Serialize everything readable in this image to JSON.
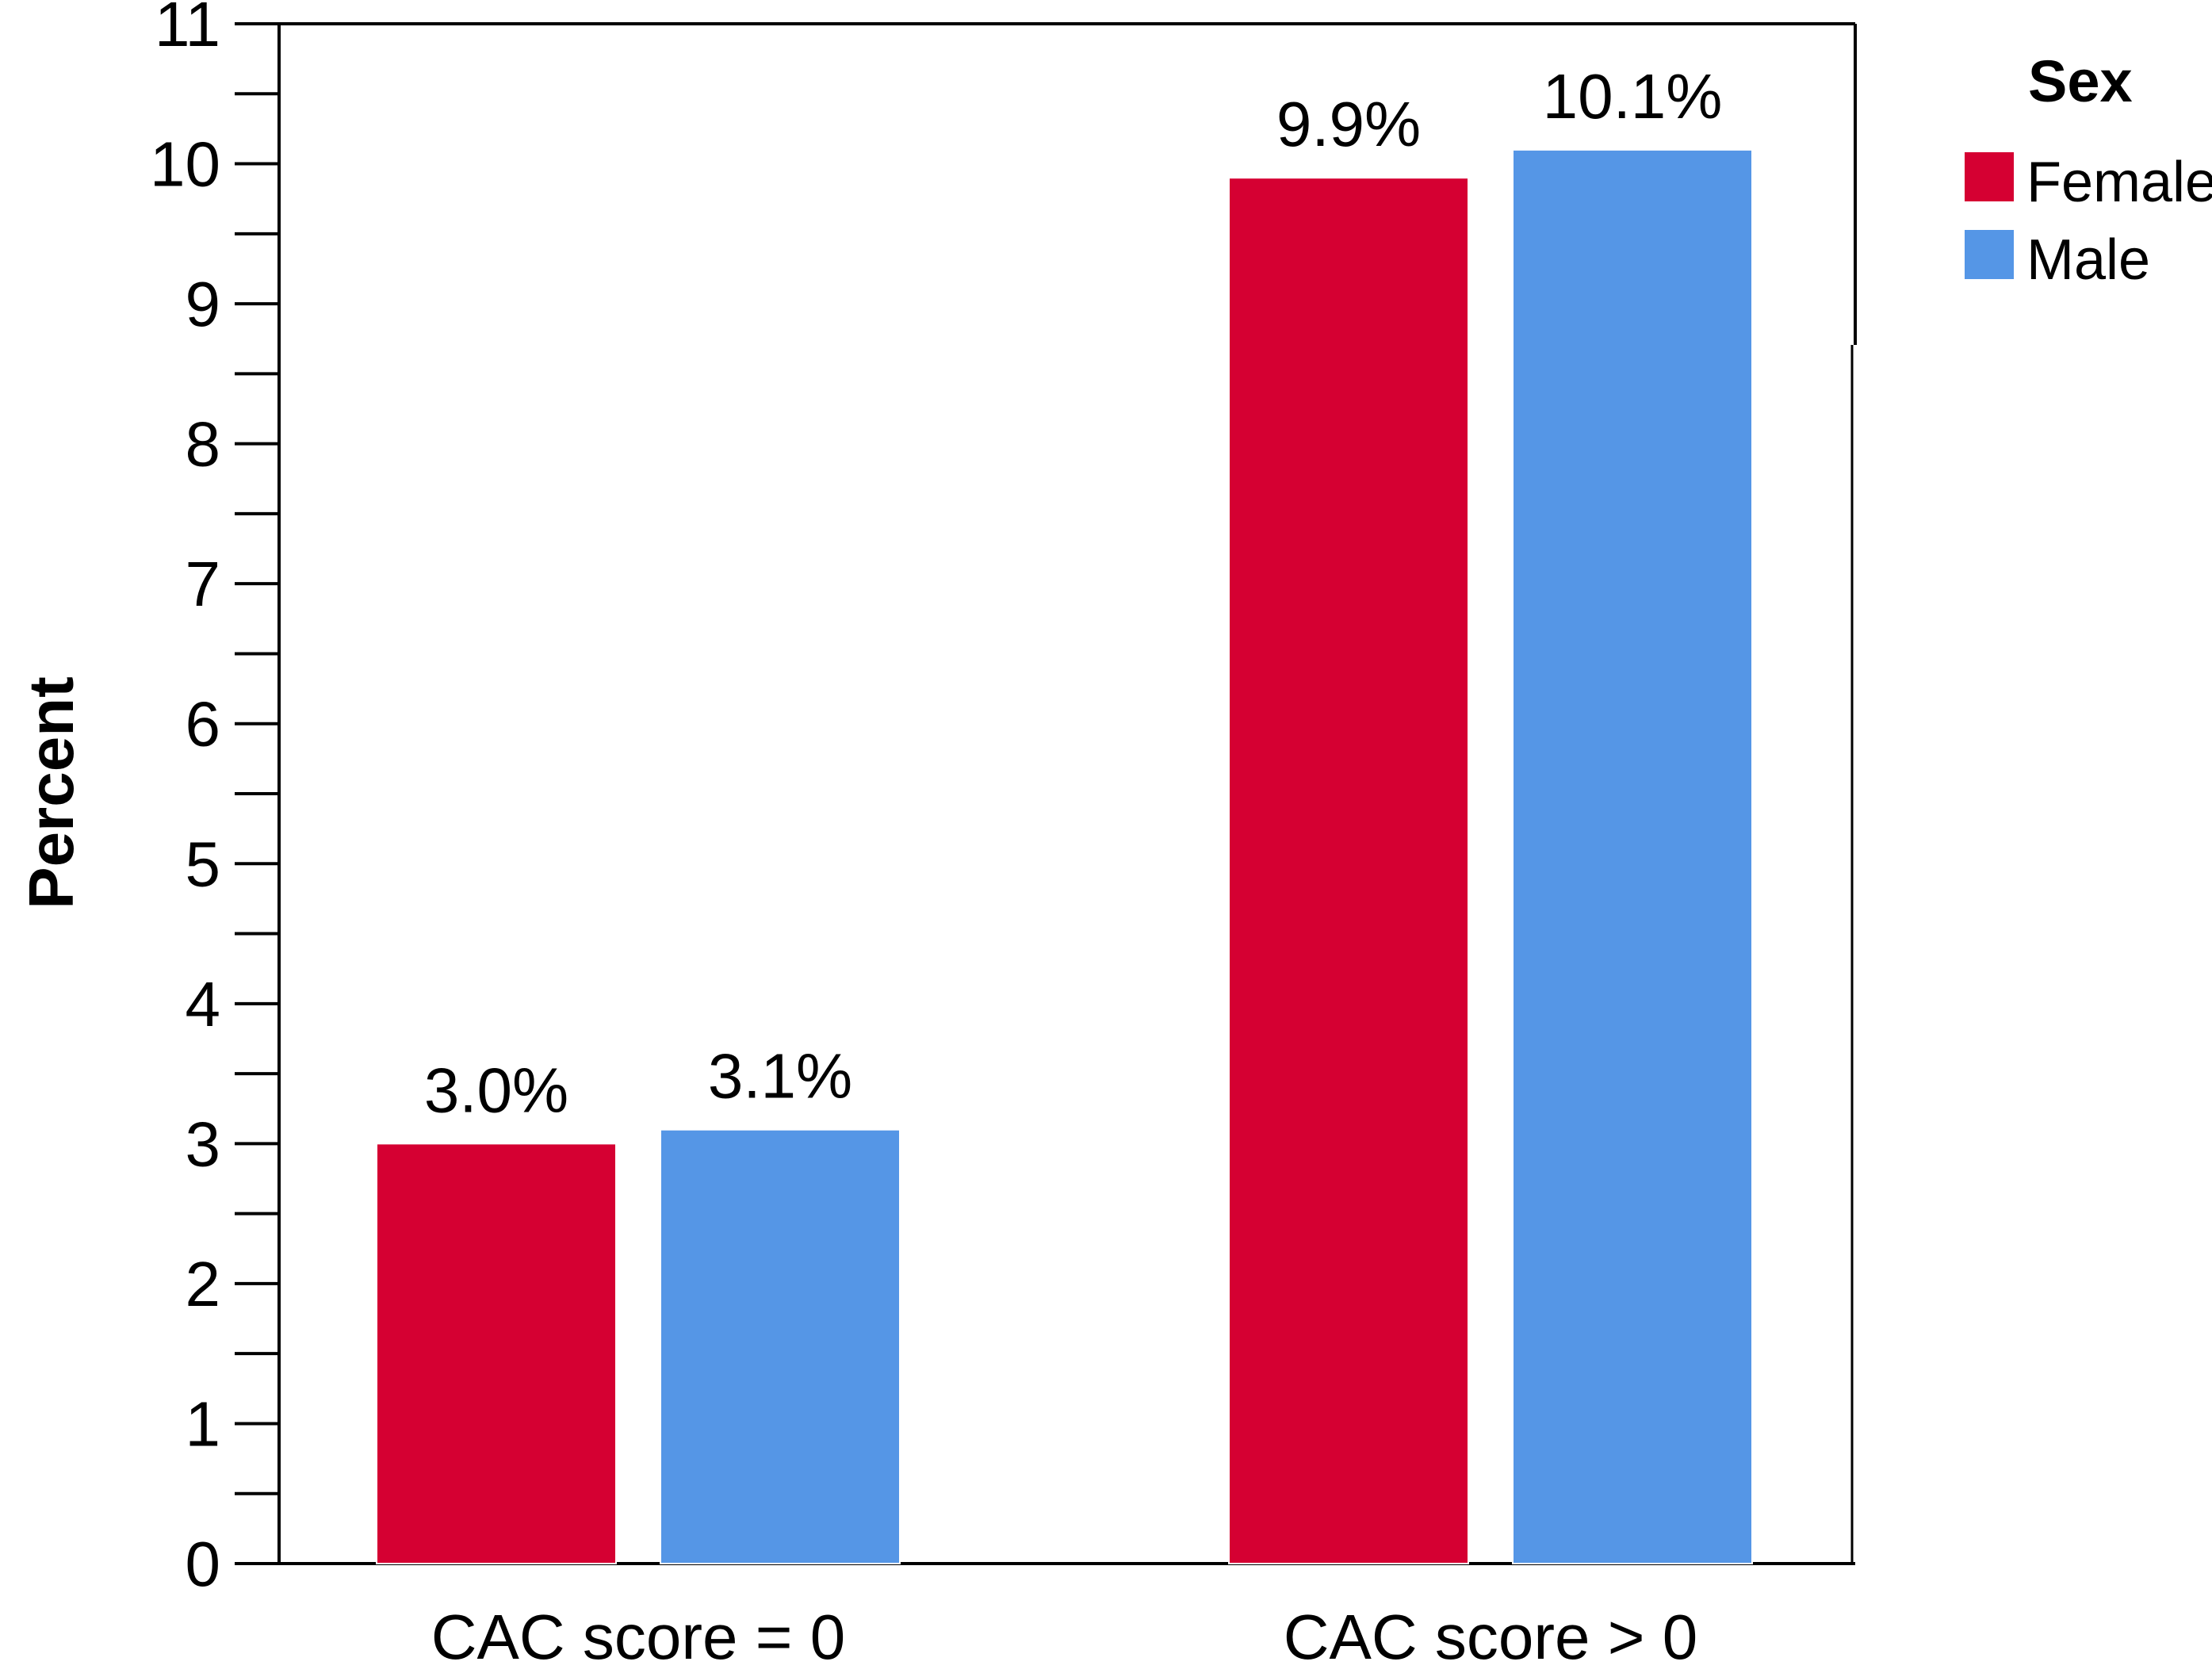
{
  "chart_data": {
    "type": "bar",
    "title": "",
    "xlabel": "",
    "ylabel": "Percent",
    "ylim": [
      0,
      11
    ],
    "y_major_ticks": [
      0,
      1,
      2,
      3,
      4,
      5,
      6,
      7,
      8,
      9,
      10,
      11
    ],
    "y_minor_step": 0.5,
    "grid": false,
    "legend_position": "top-right",
    "legend_title": "Sex",
    "categories": [
      "CAC score = 0",
      "CAC score > 0"
    ],
    "series": [
      {
        "name": "Female",
        "color": "#d50032",
        "values": [
          3.0,
          9.9
        ],
        "labels": [
          "3.0%",
          "9.9%"
        ]
      },
      {
        "name": "Male",
        "color": "#5596e6",
        "values": [
          3.1,
          10.1
        ],
        "labels": [
          "3.1%",
          "10.1%"
        ]
      }
    ]
  }
}
